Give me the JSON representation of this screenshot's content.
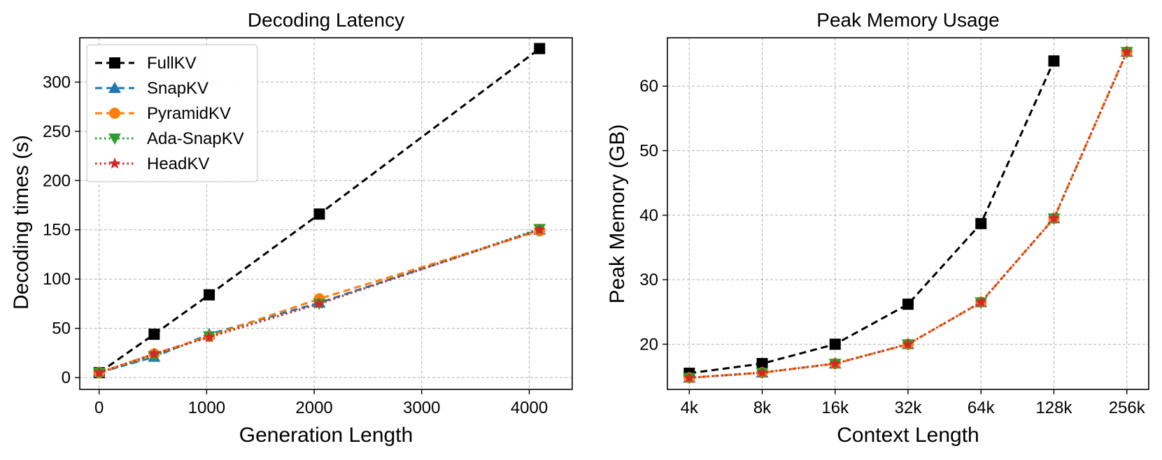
{
  "colors": {
    "FullKV": "#000000",
    "SnapKV": "#1f77b4",
    "PyramidKV": "#ff7f0e",
    "Ada-SnapKV": "#2ca02c",
    "HeadKV": "#d62728",
    "grid": "#b0b0b0"
  },
  "chart_data": [
    {
      "type": "line",
      "title": "Decoding Latency",
      "xlabel": "Generation Length",
      "ylabel": "Decoding times (s)",
      "x": [
        1,
        512,
        1024,
        2048,
        4096
      ],
      "xlim": [
        -180,
        4400
      ],
      "ylim": [
        -12,
        345
      ],
      "xticks": [
        0,
        1000,
        2000,
        3000,
        4000
      ],
      "xtick_labels": [
        "0",
        "1000",
        "2000",
        "3000",
        "4000"
      ],
      "yticks": [
        0,
        50,
        100,
        150,
        200,
        250,
        300
      ],
      "ytick_labels": [
        "0",
        "50",
        "100",
        "150",
        "200",
        "250",
        "300"
      ],
      "grid": true,
      "legend": {
        "location": "upper-left",
        "entries": [
          "FullKV",
          "SnapKV",
          "PyramidKV",
          "Ada-SnapKV",
          "HeadKV"
        ]
      },
      "series": [
        {
          "name": "FullKV",
          "marker": "square",
          "linestyle": "dashed",
          "values": [
            5,
            44,
            84,
            166,
            334
          ]
        },
        {
          "name": "SnapKV",
          "marker": "triangle-up",
          "linestyle": "dashed",
          "values": [
            5,
            21,
            44,
            76,
            150
          ]
        },
        {
          "name": "PyramidKV",
          "marker": "circle",
          "linestyle": "dashed",
          "values": [
            5,
            24,
            42,
            80,
            149
          ]
        },
        {
          "name": "Ada-SnapKV",
          "marker": "triangle-down",
          "linestyle": "dotted",
          "values": [
            5,
            22,
            42,
            75,
            151
          ]
        },
        {
          "name": "HeadKV",
          "marker": "star",
          "linestyle": "dotted",
          "values": [
            5,
            24,
            41,
            75,
            150
          ]
        }
      ]
    },
    {
      "type": "line",
      "title": "Peak Memory Usage",
      "xlabel": "Context Length",
      "ylabel": "Peak Memory (GB)",
      "categories": [
        "4k",
        "8k",
        "16k",
        "32k",
        "64k",
        "128k",
        "256k"
      ],
      "xlim": [
        -0.3,
        6.3
      ],
      "ylim": [
        13,
        67.5
      ],
      "yticks": [
        20,
        30,
        40,
        50,
        60
      ],
      "ytick_labels": [
        "20",
        "30",
        "40",
        "50",
        "60"
      ],
      "grid": true,
      "series": [
        {
          "name": "FullKV",
          "marker": "square",
          "linestyle": "dashed",
          "values": [
            15.5,
            17,
            20,
            26.2,
            38.7,
            63.9,
            null
          ]
        },
        {
          "name": "SnapKV",
          "marker": "triangle-up",
          "linestyle": "dashed",
          "values": [
            14.8,
            15.6,
            17,
            20,
            26.5,
            39.5,
            65.3
          ]
        },
        {
          "name": "PyramidKV",
          "marker": "circle",
          "linestyle": "dashed",
          "values": [
            14.8,
            15.6,
            17,
            20,
            26.5,
            39.5,
            65.3
          ]
        },
        {
          "name": "Ada-SnapKV",
          "marker": "triangle-down",
          "linestyle": "dotted",
          "values": [
            14.8,
            15.6,
            17,
            20,
            26.5,
            39.5,
            65.3
          ]
        },
        {
          "name": "HeadKV",
          "marker": "star",
          "linestyle": "dotted",
          "values": [
            14.8,
            15.6,
            17,
            20,
            26.5,
            39.5,
            65.3
          ]
        }
      ]
    }
  ]
}
